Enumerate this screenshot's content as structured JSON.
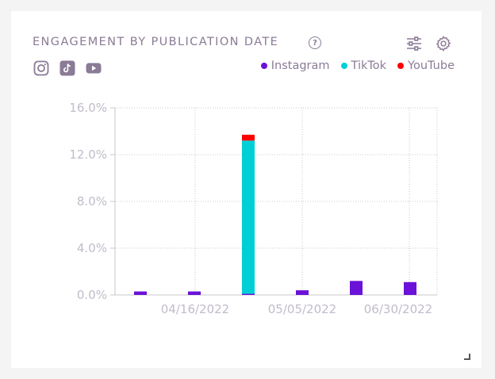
{
  "widget": {
    "title": "ENGAGEMENT BY PUBLICATION DATE",
    "help_icon": "question-circle-icon",
    "filter_icon": "sliders-icon",
    "settings_icon": "gear-icon"
  },
  "platform_icons": [
    "instagram-icon",
    "tiktok-icon",
    "youtube-icon"
  ],
  "legend": [
    {
      "label": "Instagram",
      "color": "#6b12d8"
    },
    {
      "label": "TikTok",
      "color": "#00cfd6"
    },
    {
      "label": "YouTube",
      "color": "#ff0000"
    }
  ],
  "chart_data": {
    "type": "bar",
    "stacked": true,
    "y_tick_labels": [
      "16.0%",
      "12.0%",
      "8.0%",
      "4.0%",
      "0.0%"
    ],
    "x_tick_labels": [
      "04/16/2022",
      "05/05/2022",
      "06/30/2022"
    ],
    "ylim": [
      0,
      16
    ],
    "grid": true,
    "legend_position": "top-right",
    "series": [
      {
        "name": "Instagram",
        "color": "#6b12d8",
        "values": [
          0.3,
          0.3,
          0.1,
          0.4,
          1.2,
          1.1
        ]
      },
      {
        "name": "TikTok",
        "color": "#00cfd6",
        "values": [
          0,
          0,
          13.1,
          0,
          0,
          0
        ]
      },
      {
        "name": "YouTube",
        "color": "#ff0000",
        "values": [
          0,
          0,
          0.5,
          0,
          0,
          0
        ]
      }
    ]
  }
}
